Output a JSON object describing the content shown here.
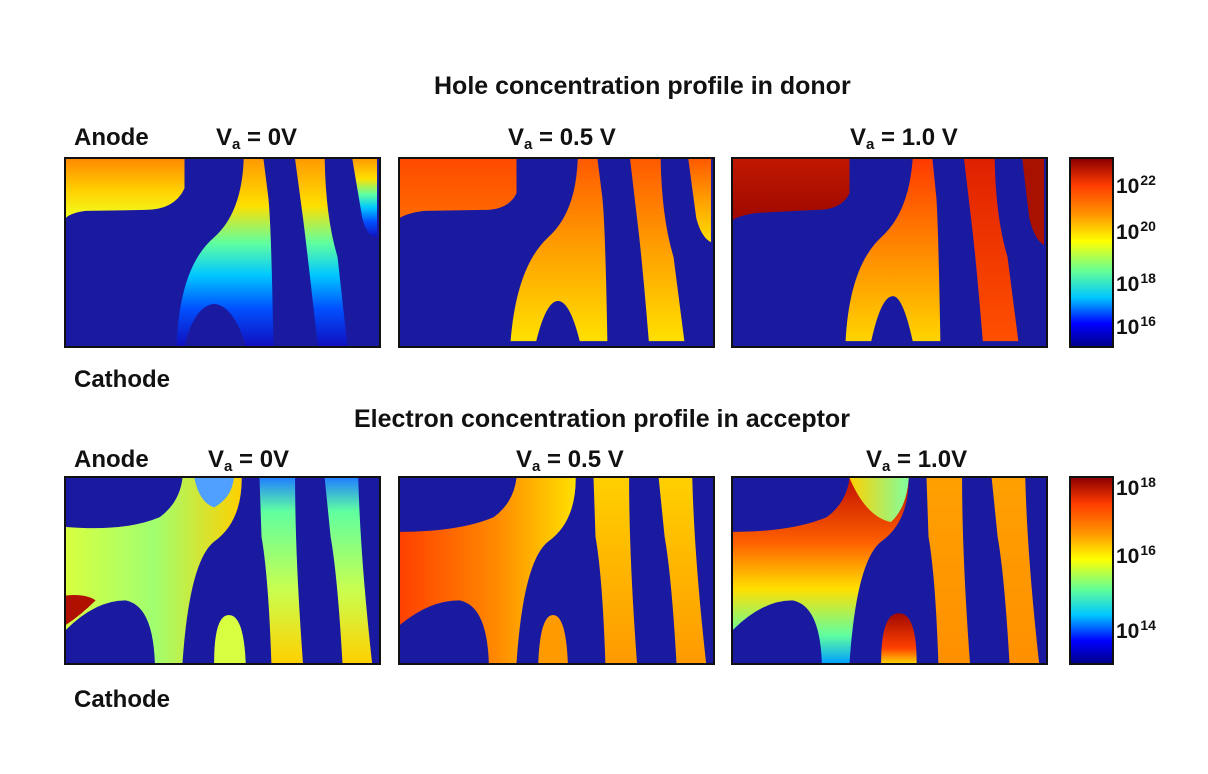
{
  "top": {
    "title": "Hole concentration profile in donor",
    "anode": "Anode",
    "cathode": "Cathode",
    "panels": [
      {
        "v_main": "V",
        "v_sub": "a",
        "v_rest": " = 0V"
      },
      {
        "v_main": "V",
        "v_sub": "a",
        "v_rest": " = 0.5 V"
      },
      {
        "v_main": "V",
        "v_sub": "a",
        "v_rest": " = 1.0 V"
      }
    ],
    "colorbar": [
      {
        "base": "10",
        "exp": "22"
      },
      {
        "base": "10",
        "exp": "20"
      },
      {
        "base": "10",
        "exp": "18"
      },
      {
        "base": "10",
        "exp": "16"
      }
    ]
  },
  "bottom": {
    "title": "Electron concentration profile in acceptor",
    "anode": "Anode",
    "cathode": "Cathode",
    "panels": [
      {
        "v_main": "V",
        "v_sub": "a",
        "v_rest": " = 0V"
      },
      {
        "v_main": "V",
        "v_sub": "a",
        "v_rest": " = 0.5 V"
      },
      {
        "v_main": "V",
        "v_sub": "a",
        "v_rest": " = 1.0V"
      }
    ],
    "colorbar": [
      {
        "base": "10",
        "exp": "18"
      },
      {
        "base": "10",
        "exp": "16"
      },
      {
        "base": "10",
        "exp": "14"
      }
    ]
  },
  "colors": {
    "background_blue": "#1a1aa0",
    "colormap": [
      "#00008f",
      "#0000ff",
      "#00c8ff",
      "#64ff96",
      "#ffff00",
      "#ff9600",
      "#ff3c00",
      "#8c0000"
    ]
  }
}
